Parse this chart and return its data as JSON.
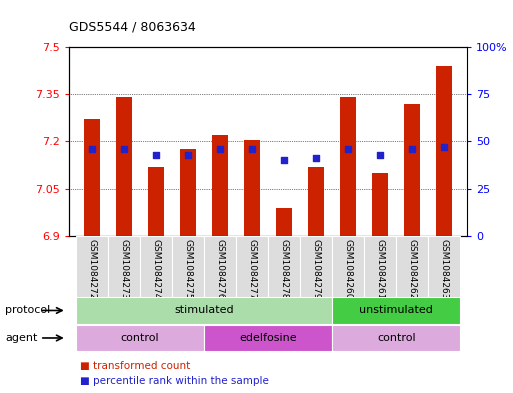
{
  "title": "GDS5544 / 8063634",
  "samples": [
    "GSM1084272",
    "GSM1084273",
    "GSM1084274",
    "GSM1084275",
    "GSM1084276",
    "GSM1084277",
    "GSM1084278",
    "GSM1084279",
    "GSM1084260",
    "GSM1084261",
    "GSM1084262",
    "GSM1084263"
  ],
  "bar_values": [
    7.27,
    7.34,
    7.12,
    7.175,
    7.22,
    7.205,
    6.99,
    7.12,
    7.34,
    7.1,
    7.32,
    7.44
  ],
  "percentile_values": [
    46,
    46,
    43,
    43,
    46,
    46,
    40,
    41,
    46,
    43,
    46,
    47
  ],
  "ylim": [
    6.9,
    7.5
  ],
  "yticks": [
    6.9,
    7.05,
    7.2,
    7.35,
    7.5
  ],
  "ytick_labels": [
    "6.9",
    "7.05",
    "7.2",
    "7.35",
    "7.5"
  ],
  "y2lim": [
    0,
    100
  ],
  "y2ticks": [
    0,
    25,
    50,
    75,
    100
  ],
  "y2tick_labels": [
    "0",
    "25",
    "50",
    "75",
    "100%"
  ],
  "bar_color": "#cc2200",
  "dot_color": "#2222cc",
  "protocol_groups": [
    {
      "label": "stimulated",
      "start": 0,
      "end": 7,
      "color": "#aaddaa"
    },
    {
      "label": "unstimulated",
      "start": 8,
      "end": 11,
      "color": "#44cc44"
    }
  ],
  "agent_groups": [
    {
      "label": "control",
      "start": 0,
      "end": 3,
      "color": "#ddaadd"
    },
    {
      "label": "edelfosine",
      "start": 4,
      "end": 7,
      "color": "#cc55cc"
    },
    {
      "label": "control",
      "start": 8,
      "end": 11,
      "color": "#ddaadd"
    }
  ],
  "legend_items": [
    {
      "label": "transformed count",
      "color": "#cc2200"
    },
    {
      "label": "percentile rank within the sample",
      "color": "#2222cc"
    }
  ],
  "protocol_label": "protocol",
  "agent_label": "agent"
}
